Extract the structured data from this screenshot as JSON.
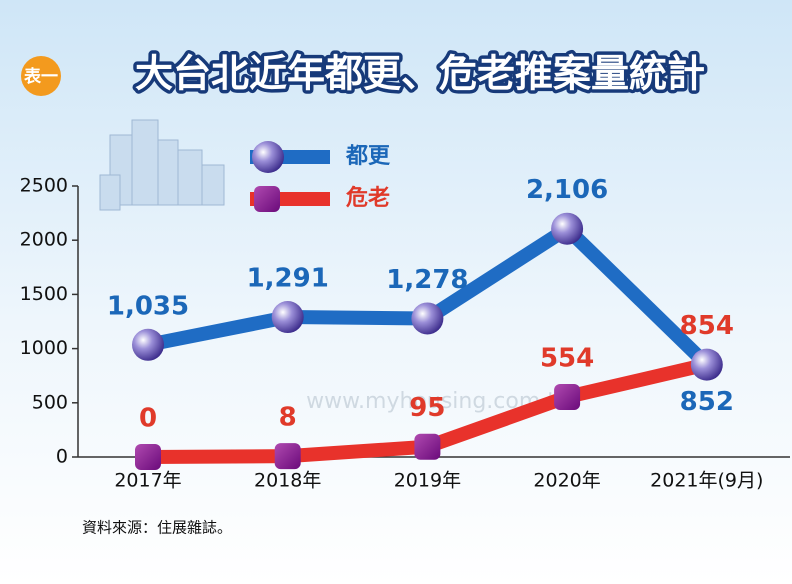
{
  "chart_data": {
    "type": "line",
    "badge": "表一",
    "title": "大台北近年都更、危老推案量統計",
    "categories": [
      "2017年",
      "2018年",
      "2019年",
      "2020年",
      "2021年(9月)"
    ],
    "series": [
      {
        "name": "都更",
        "color": "#1f6cc4",
        "label_color": "#1b67b8",
        "marker": "circle",
        "values": [
          1035,
          1291,
          1278,
          2106,
          852
        ],
        "value_labels": [
          "1,035",
          "1,291",
          "1,278",
          "2,106",
          "852"
        ]
      },
      {
        "name": "危老",
        "color": "#e8322b",
        "label_color": "#e03a2a",
        "marker": "square",
        "values": [
          0,
          8,
          95,
          554,
          854
        ],
        "value_labels": [
          "0",
          "8",
          "95",
          "554",
          "854"
        ]
      }
    ],
    "ylim": [
      0,
      2500
    ],
    "yticks": [
      0,
      500,
      1000,
      1500,
      2000,
      2500
    ],
    "watermark": "www.myhousing.com.tw",
    "source": "資料來源：住展雜誌。"
  }
}
